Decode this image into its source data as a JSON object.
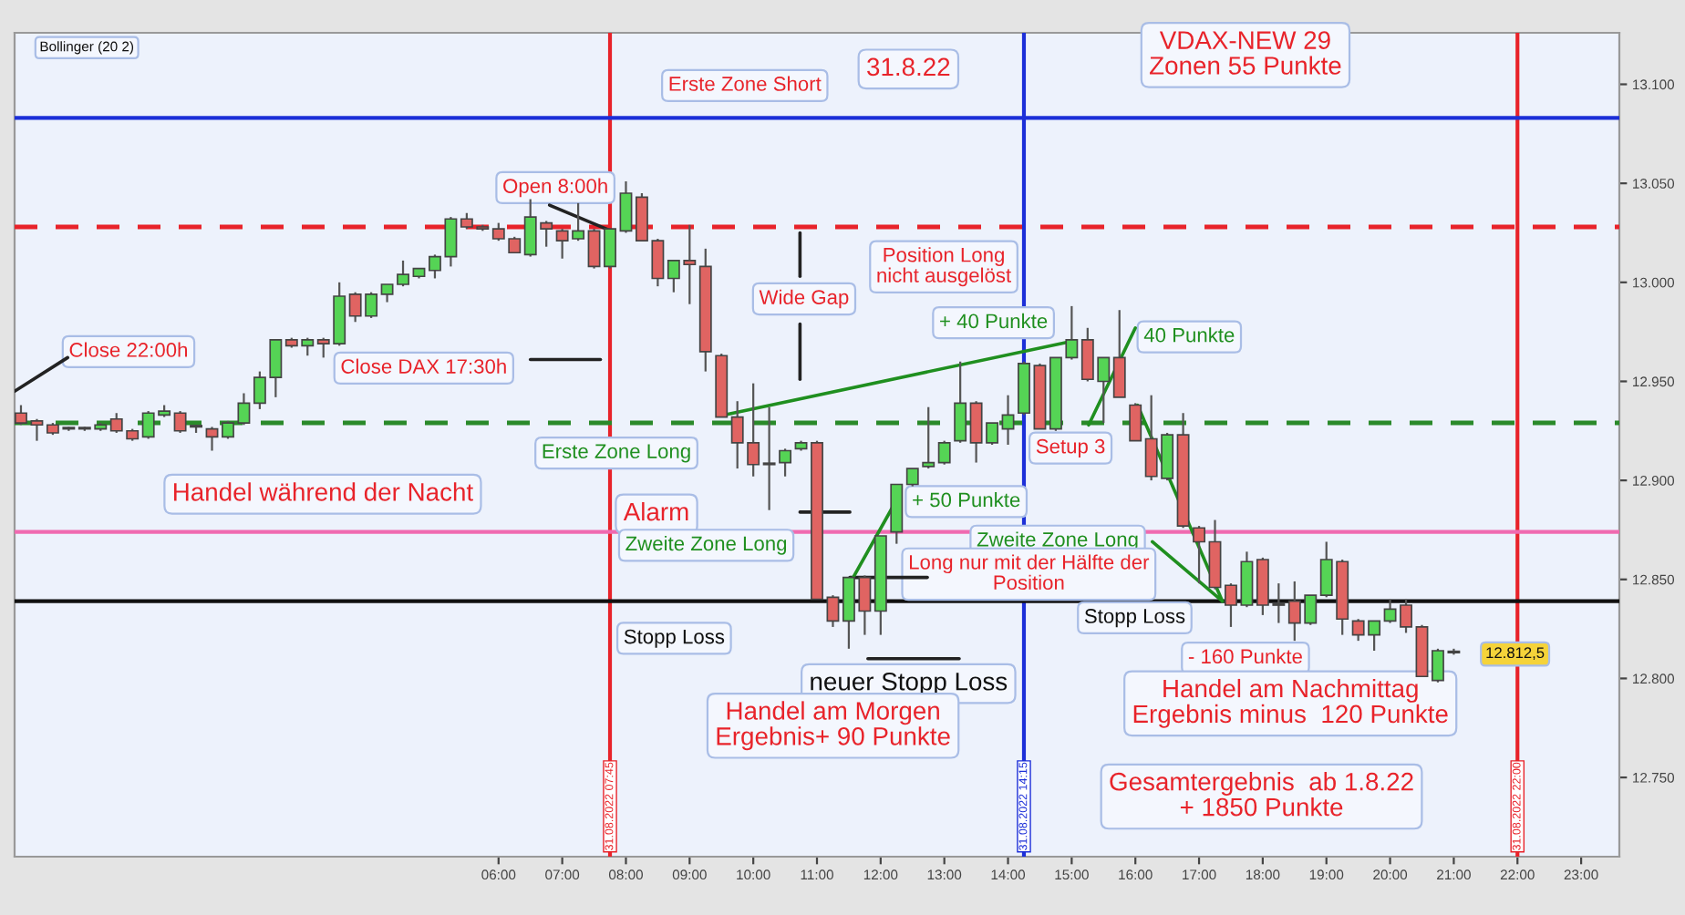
{
  "chart_data": {
    "type": "candlestick",
    "x": [
      "2022-08-30T22:30",
      "2022-08-30T22:45",
      "2022-08-30T23:00",
      "2022-08-30T23:15",
      "2022-08-30T23:30",
      "2022-08-30T23:45",
      "2022-08-31T00:00",
      "2022-08-31T00:15",
      "2022-08-31T00:30",
      "2022-08-31T00:45",
      "2022-08-31T01:00",
      "2022-08-31T01:15",
      "2022-08-31T01:30",
      "2022-08-31T01:45",
      "2022-08-31T02:00",
      "2022-08-31T02:15",
      "2022-08-31T02:30",
      "2022-08-31T02:45",
      "2022-08-31T03:00",
      "2022-08-31T03:15",
      "2022-08-31T03:30",
      "2022-08-31T03:45",
      "2022-08-31T04:00",
      "2022-08-31T04:15",
      "2022-08-31T04:30",
      "2022-08-31T04:45",
      "2022-08-31T05:00",
      "2022-08-31T05:15",
      "2022-08-31T05:30",
      "2022-08-31T05:45",
      "2022-08-31T06:00",
      "2022-08-31T06:15",
      "2022-08-31T06:30",
      "2022-08-31T06:45",
      "2022-08-31T07:00",
      "2022-08-31T07:15",
      "2022-08-31T07:30",
      "2022-08-31T07:45",
      "2022-08-31T08:00",
      "2022-08-31T08:15",
      "2022-08-31T08:30",
      "2022-08-31T08:45",
      "2022-08-31T09:00",
      "2022-08-31T09:15",
      "2022-08-31T09:30",
      "2022-08-31T09:45",
      "2022-08-31T10:00",
      "2022-08-31T10:15",
      "2022-08-31T10:30",
      "2022-08-31T10:45",
      "2022-08-31T11:00",
      "2022-08-31T11:15",
      "2022-08-31T11:30",
      "2022-08-31T11:45",
      "2022-08-31T12:00",
      "2022-08-31T12:15",
      "2022-08-31T12:30",
      "2022-08-31T12:45",
      "2022-08-31T13:00",
      "2022-08-31T13:15",
      "2022-08-31T13:30",
      "2022-08-31T13:45",
      "2022-08-31T14:00",
      "2022-08-31T14:15",
      "2022-08-31T14:30",
      "2022-08-31T14:45",
      "2022-08-31T15:00",
      "2022-08-31T15:15",
      "2022-08-31T15:30",
      "2022-08-31T15:45",
      "2022-08-31T16:00",
      "2022-08-31T16:15",
      "2022-08-31T16:30",
      "2022-08-31T16:45",
      "2022-08-31T17:00",
      "2022-08-31T17:15",
      "2022-08-31T17:30",
      "2022-08-31T17:45",
      "2022-08-31T18:00",
      "2022-08-31T18:15",
      "2022-08-31T18:30",
      "2022-08-31T18:45",
      "2022-08-31T19:00",
      "2022-08-31T19:15",
      "2022-08-31T19:30",
      "2022-08-31T19:45",
      "2022-08-31T20:00",
      "2022-08-31T20:15",
      "2022-08-31T20:30",
      "2022-08-31T20:45",
      "2022-08-31T21:00"
    ],
    "ohlc": [
      [
        12934,
        12938,
        12928,
        12929
      ],
      [
        12930,
        12931,
        12920,
        12928
      ],
      [
        12928,
        12929,
        12923,
        12924
      ],
      [
        12926,
        12927,
        12925,
        12926
      ],
      [
        12926,
        12927,
        12925,
        12926
      ],
      [
        12926,
        12929,
        12925,
        12928
      ],
      [
        12931,
        12934,
        12924,
        12925
      ],
      [
        12925,
        12926,
        12920,
        12921
      ],
      [
        12922,
        12935,
        12921,
        12934
      ],
      [
        12933,
        12938,
        12932,
        12935
      ],
      [
        12934,
        12935,
        12924,
        12925
      ],
      [
        12927,
        12928,
        12924,
        12927
      ],
      [
        12926,
        12927,
        12915,
        12922
      ],
      [
        12922,
        12930,
        12921,
        12929
      ],
      [
        12929,
        12944,
        12928,
        12939
      ],
      [
        12939,
        12955,
        12936,
        12952
      ],
      [
        12952,
        12971,
        12942,
        12971
      ],
      [
        12971,
        12972,
        12967,
        12968
      ],
      [
        12968,
        12972,
        12963,
        12971
      ],
      [
        12971,
        12972,
        12962,
        12969
      ],
      [
        12969,
        13000,
        12968,
        12993
      ],
      [
        12994,
        12995,
        12980,
        12983
      ],
      [
        12983,
        12995,
        12982,
        12994
      ],
      [
        12994,
        12999,
        12990,
        12999
      ],
      [
        12999,
        13011,
        12998,
        13004
      ],
      [
        13003,
        13007,
        13002,
        13007
      ],
      [
        13006,
        13014,
        13002,
        13013
      ],
      [
        13013,
        13033,
        13008,
        13032
      ],
      [
        13032,
        13035,
        13027,
        13028
      ],
      [
        13028,
        13029,
        13026,
        13027
      ],
      [
        13027,
        13030,
        13021,
        13022
      ],
      [
        13022,
        13023,
        13015,
        13015
      ],
      [
        13014,
        13042,
        13013,
        13033
      ],
      [
        13030,
        13031,
        13018,
        13027
      ],
      [
        13026,
        13027,
        13012,
        13021
      ],
      [
        13022,
        13040,
        13021,
        13026
      ],
      [
        13026,
        13027,
        13007,
        13008
      ],
      [
        13008,
        13027,
        13007,
        13027
      ],
      [
        13026,
        13051,
        13025,
        13045
      ],
      [
        13043,
        13045,
        13021,
        13021
      ],
      [
        13021,
        13022,
        12998,
        13002
      ],
      [
        13002,
        13011,
        12995,
        13011
      ],
      [
        13011,
        13029,
        12989,
        13009
      ],
      [
        13008,
        13017,
        12955,
        12965
      ],
      [
        12963,
        12964,
        12932,
        12932
      ],
      [
        12932,
        12940,
        12906,
        12919
      ],
      [
        12919,
        12949,
        12902,
        12908
      ],
      [
        12908,
        12937,
        12885,
        12908
      ],
      [
        12909,
        12916,
        12902,
        12915
      ],
      [
        12916,
        12920,
        12915,
        12919
      ],
      [
        12919,
        12920,
        12840,
        12840
      ],
      [
        12841,
        12842,
        12826,
        12829
      ],
      [
        12829,
        12851,
        12815,
        12851
      ],
      [
        12851,
        12852,
        12822,
        12834
      ],
      [
        12834,
        12872,
        12822,
        12872
      ],
      [
        12874,
        12898,
        12868,
        12898
      ],
      [
        12898,
        12906,
        12897,
        12906
      ],
      [
        12907,
        12937,
        12906,
        12909
      ],
      [
        12909,
        12920,
        12908,
        12919
      ],
      [
        12920,
        12960,
        12919,
        12939
      ],
      [
        12939,
        12940,
        12909,
        12919
      ],
      [
        12919,
        12929,
        12918,
        12929
      ],
      [
        12926,
        12943,
        12918,
        12933
      ],
      [
        12934,
        12960,
        12933,
        12959
      ],
      [
        12958,
        12959,
        12926,
        12926
      ],
      [
        12926,
        12962,
        12925,
        12962
      ],
      [
        12962,
        12988,
        12961,
        12971
      ],
      [
        12971,
        12977,
        12950,
        12951
      ],
      [
        12950,
        12962,
        12929,
        12962
      ],
      [
        12962,
        12986,
        12942,
        12942
      ],
      [
        12938,
        12939,
        12920,
        12920
      ],
      [
        12921,
        12943,
        12900,
        12902
      ],
      [
        12901,
        12924,
        12900,
        12923
      ],
      [
        12923,
        12934,
        12876,
        12877
      ],
      [
        12876,
        12877,
        12848,
        12869
      ],
      [
        12869,
        12880,
        12845,
        12846
      ],
      [
        12847,
        12848,
        12826,
        12837
      ],
      [
        12837,
        12864,
        12836,
        12859
      ],
      [
        12860,
        12861,
        12832,
        12837
      ],
      [
        12837,
        12848,
        12828,
        12837
      ],
      [
        12839,
        12849,
        12819,
        12828
      ],
      [
        12828,
        12842,
        12827,
        12842
      ],
      [
        12842,
        12869,
        12841,
        12860
      ],
      [
        12859,
        12860,
        12822,
        12830
      ],
      [
        12829,
        12830,
        12819,
        12822
      ],
      [
        12822,
        12829,
        12814,
        12829
      ],
      [
        12829,
        12840,
        12828,
        12835
      ],
      [
        12837,
        12840,
        12823,
        12826
      ],
      [
        12826,
        12827,
        12801,
        12801
      ],
      [
        12799,
        12815,
        12798,
        12814
      ],
      [
        12813,
        12815,
        12812,
        12813
      ]
    ],
    "colors": [
      "#e06462",
      "#e06462",
      "#e06462",
      "#e06462",
      "#e06462",
      "#55d455",
      "#e06462",
      "#e06462",
      "#55d455",
      "#55d455",
      "#e06462",
      "#e06462",
      "#e06462",
      "#55d455",
      "#55d455",
      "#55d455",
      "#55d455",
      "#e06462",
      "#55d455",
      "#e06462",
      "#55d455",
      "#e06462",
      "#55d455",
      "#55d455",
      "#55d455",
      "#55d455",
      "#55d455",
      "#55d455",
      "#e06462",
      "#e06462",
      "#e06462",
      "#e06462",
      "#55d455",
      "#e06462",
      "#e06462",
      "#55d455",
      "#e06462",
      "#55d455",
      "#55d455",
      "#e06462",
      "#e06462",
      "#55d455",
      "#e06462",
      "#e06462",
      "#e06462",
      "#e06462",
      "#e06462",
      "#e06462",
      "#55d455",
      "#55d455",
      "#e06462",
      "#e06462",
      "#55d455",
      "#e06462",
      "#55d455",
      "#55d455",
      "#55d455",
      "#55d455",
      "#55d455",
      "#55d455",
      "#e06462",
      "#55d455",
      "#55d455",
      "#55d455",
      "#e06462",
      "#55d455",
      "#55d455",
      "#e06462",
      "#55d455",
      "#e06462",
      "#e06462",
      "#e06462",
      "#55d455",
      "#e06462",
      "#e06462",
      "#e06462",
      "#e06462",
      "#55d455",
      "#e06462",
      "#e06462",
      "#e06462",
      "#55d455",
      "#55d455",
      "#e06462",
      "#e06462",
      "#55d455",
      "#55d455",
      "#e06462",
      "#e06462",
      "#55d455",
      "#e06462"
    ],
    "series": [
      {
        "type": "line",
        "color": "#222222",
        "x": [
          "2022-08-30T22:24",
          "2022-08-30T23:14"
        ],
        "values": [
          12945,
          12962
        ]
      },
      {
        "type": "line",
        "color": "#222222",
        "x": [
          "2022-08-31T07:46",
          "2022-08-31T06:48"
        ],
        "values": [
          13026,
          13039
        ]
      },
      {
        "type": "line",
        "color": "#222222",
        "x": [
          "2022-08-31T07:36",
          "2022-08-31T06:30"
        ],
        "values": [
          12961,
          12961
        ]
      },
      {
        "type": "line",
        "color": "#222222",
        "x": [
          "2022-08-31T10:44",
          "2022-08-31T10:44"
        ],
        "values": [
          13025,
          13003
        ]
      },
      {
        "type": "line",
        "color": "#222222",
        "x": [
          "2022-08-31T10:44",
          "2022-08-31T10:44"
        ],
        "values": [
          12951,
          12979
        ]
      },
      {
        "type": "line",
        "color": "#222222",
        "x": [
          "2022-08-31T10:44",
          "2022-08-31T11:31"
        ],
        "values": [
          12884,
          12884
        ]
      },
      {
        "type": "line",
        "color": "#222222",
        "x": [
          "2022-08-31T11:31",
          "2022-08-31T12:44"
        ],
        "values": [
          12851,
          12851
        ]
      },
      {
        "type": "line",
        "color": "#222222",
        "x": [
          "2022-08-31T11:48",
          "2022-08-31T13:14"
        ],
        "values": [
          12810,
          12810
        ]
      },
      {
        "type": "line",
        "color": "#1f8f1f",
        "x": [
          "2022-08-31T09:32",
          "2022-08-31T14:58"
        ],
        "values": [
          12933,
          12970
        ]
      },
      {
        "type": "line",
        "color": "#1f8f1f",
        "x": [
          "2022-08-31T15:16",
          "2022-08-31T16:00"
        ],
        "values": [
          12928,
          12977
        ]
      },
      {
        "type": "line",
        "color": "#1f8f1f",
        "x": [
          "2022-08-31T11:31",
          "2022-08-31T12:17"
        ],
        "values": [
          12848,
          12892
        ]
      },
      {
        "type": "line",
        "color": "#1f8f1f",
        "x": [
          "2022-08-31T16:02",
          "2022-08-31T17:22"
        ],
        "values": [
          12938,
          12839
        ]
      },
      {
        "type": "line",
        "color": "#1f8f1f",
        "x": [
          "2022-08-31T16:16",
          "2022-08-31T17:22"
        ],
        "values": [
          12869,
          12839
        ]
      }
    ],
    "ref_lines": [
      {
        "axis": "x",
        "value": "2022-08-31T07:45",
        "label": "31.08.2022 07:45",
        "color": "#e8232a",
        "line_style": "solid"
      },
      {
        "axis": "x",
        "value": "2022-08-31T14:15",
        "label": "31.08.2022 14:15",
        "color": "#1c2fd8",
        "line_style": "solid"
      },
      {
        "axis": "x",
        "value": "2022-08-31T22:00",
        "label": "31.08.2022 22:00",
        "color": "#e8232a",
        "line_style": "solid"
      },
      {
        "axis": "y",
        "value": 13083,
        "color": "#1c2fd8",
        "line_style": "solid"
      },
      {
        "axis": "y",
        "value": 13028,
        "color": "#e8232a",
        "line_style": "dashed"
      },
      {
        "axis": "y",
        "value": 12929,
        "color": "#2a8a2a",
        "line_style": "dashed"
      },
      {
        "axis": "y",
        "value": 12874,
        "color": "#f06ab0",
        "line_style": "solid"
      },
      {
        "axis": "y",
        "value": 12839,
        "color": "#111111",
        "line_style": "solid"
      }
    ],
    "annotations": [
      "Bollinger (20 2)",
      "Erste Zone Short",
      "31.8.22",
      "VDAX-NEW 29\nZonen 55 Punkte",
      "Open 8:00h",
      "Close 22:00h",
      "Close DAX 17:30h",
      "Wide Gap",
      "+ 40 Punkte",
      "40 Punkte",
      "Setup 3",
      "Erste Zone Long",
      "Handel während der Nacht",
      "Position Long\nnicht ausgelöst",
      "+ 50 Punkte",
      "Alarm",
      "Zweite Zone Long",
      "Zweite Zone Long",
      "Long nur mit der Hälfte der\nPosition",
      "Stopp Loss",
      "Stopp Loss",
      "neuer Stopp Loss",
      "- 160 Punkte",
      "12.812,5",
      "Handel am Morgen\nErgebnis+ 90 Punkte",
      "Handel am Nachmittag\nErgebnis minus  120 Punkte",
      "Gesamtergebnis  ab 1.8.22\n+ 1850 Punkte"
    ],
    "xlim": [
      "2022-08-30T22:24",
      "2022-08-31T23:36"
    ],
    "xticks": [
      {
        "value": "2022-08-31T06:00",
        "label": "06:00"
      },
      {
        "value": "2022-08-31T07:00",
        "label": "07:00"
      },
      {
        "value": "2022-08-31T08:00",
        "label": "08:00"
      },
      {
        "value": "2022-08-31T09:00",
        "label": "09:00"
      },
      {
        "value": "2022-08-31T10:00",
        "label": "10:00"
      },
      {
        "value": "2022-08-31T11:00",
        "label": "11:00"
      },
      {
        "value": "2022-08-31T12:00",
        "label": "12:00"
      },
      {
        "value": "2022-08-31T13:00",
        "label": "13:00"
      },
      {
        "value": "2022-08-31T14:00",
        "label": "14:00"
      },
      {
        "value": "2022-08-31T15:00",
        "label": "15:00"
      },
      {
        "value": "2022-08-31T16:00",
        "label": "16:00"
      },
      {
        "value": "2022-08-31T17:00",
        "label": "17:00"
      },
      {
        "value": "2022-08-31T18:00",
        "label": "18:00"
      },
      {
        "value": "2022-08-31T19:00",
        "label": "19:00"
      },
      {
        "value": "2022-08-31T20:00",
        "label": "20:00"
      },
      {
        "value": "2022-08-31T21:00",
        "label": "21:00"
      },
      {
        "value": "2022-08-31T22:00",
        "label": "22:00"
      },
      {
        "value": "2022-08-31T23:00",
        "label": "23:00"
      }
    ],
    "ylim": [
      12710,
      13126
    ],
    "yticks": [
      {
        "value": 12750,
        "label": "12.750"
      },
      {
        "value": 12800,
        "label": "12.800"
      },
      {
        "value": 12850,
        "label": "12.850"
      },
      {
        "value": 12900,
        "label": "12.900"
      },
      {
        "value": 12950,
        "label": "12.950"
      },
      {
        "value": 13000,
        "label": "13.000"
      },
      {
        "value": 13050,
        "label": "13.050"
      },
      {
        "value": 13100,
        "label": "13.100"
      }
    ]
  }
}
